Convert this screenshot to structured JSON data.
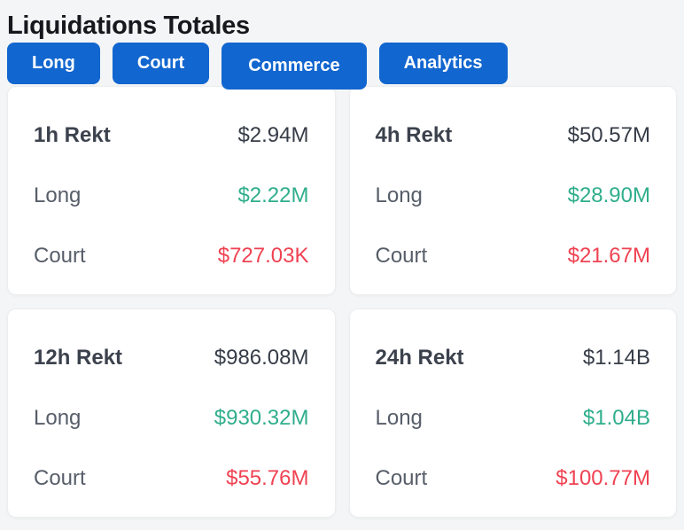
{
  "page": {
    "title": "Liquidations Totales"
  },
  "colors": {
    "tab_blue": "#1266cf",
    "green": "#2fae8c",
    "red": "#ef4252",
    "dark_value": "#363c47",
    "period_dark": "#3c424d",
    "label_gray": "#575e69",
    "page_bg": "#f4f5f6",
    "card_bg": "#ffffff",
    "card_border": "#ebedef",
    "title_color": "#16181d"
  },
  "tabs": [
    {
      "label": "Long",
      "active": false
    },
    {
      "label": "Court",
      "active": false
    },
    {
      "label": "Commerce",
      "active": true
    },
    {
      "label": "Analytics",
      "active": false
    }
  ],
  "cards": [
    {
      "period": "1h Rekt",
      "total": "$2.94M",
      "long": {
        "label": "Long",
        "value": "$2.22M"
      },
      "short": {
        "label": "Court",
        "value": "$727.03K"
      }
    },
    {
      "period": "4h Rekt",
      "total": "$50.57M",
      "long": {
        "label": "Long",
        "value": "$28.90M"
      },
      "short": {
        "label": "Court",
        "value": "$21.67M"
      }
    },
    {
      "period": "12h Rekt",
      "total": "$986.08M",
      "long": {
        "label": "Long",
        "value": "$930.32M"
      },
      "short": {
        "label": "Court",
        "value": "$55.76M"
      }
    },
    {
      "period": "24h Rekt",
      "total": "$1.14B",
      "long": {
        "label": "Long",
        "value": "$1.04B"
      },
      "short": {
        "label": "Court",
        "value": "$100.77M"
      }
    }
  ]
}
